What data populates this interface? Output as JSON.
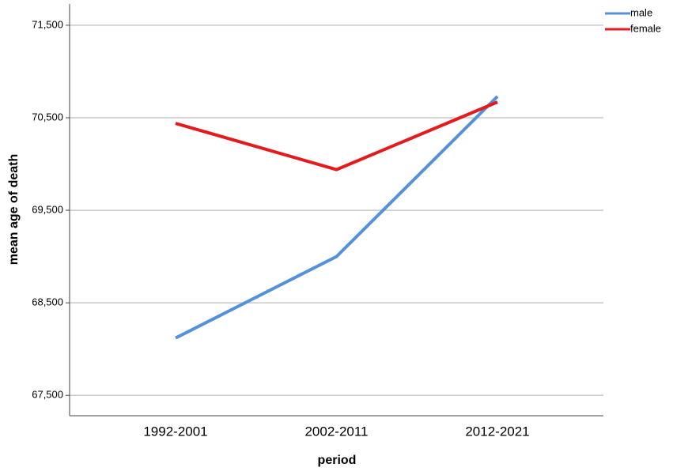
{
  "chart_data": {
    "type": "line",
    "xlabel": "period",
    "ylabel": "mean age of death",
    "categories": [
      "1992-2001",
      "2002-2011",
      "2012-2021"
    ],
    "series": [
      {
        "name": "male",
        "color": "#5591db",
        "values": [
          68.12,
          69.0,
          70.73
        ]
      },
      {
        "name": "female",
        "color": "#e41a1c",
        "values": [
          70.44,
          69.94,
          70.67
        ]
      }
    ],
    "ylim": [
      67.28,
      71.73
    ],
    "yticks": [
      {
        "value": 67.5,
        "label": "67,500"
      },
      {
        "value": 68.5,
        "label": "68,500"
      },
      {
        "value": 69.5,
        "label": "69,500"
      },
      {
        "value": 70.5,
        "label": "70,500"
      },
      {
        "value": 71.5,
        "label": "71,500"
      }
    ],
    "grid": true,
    "legend": "top-right"
  }
}
